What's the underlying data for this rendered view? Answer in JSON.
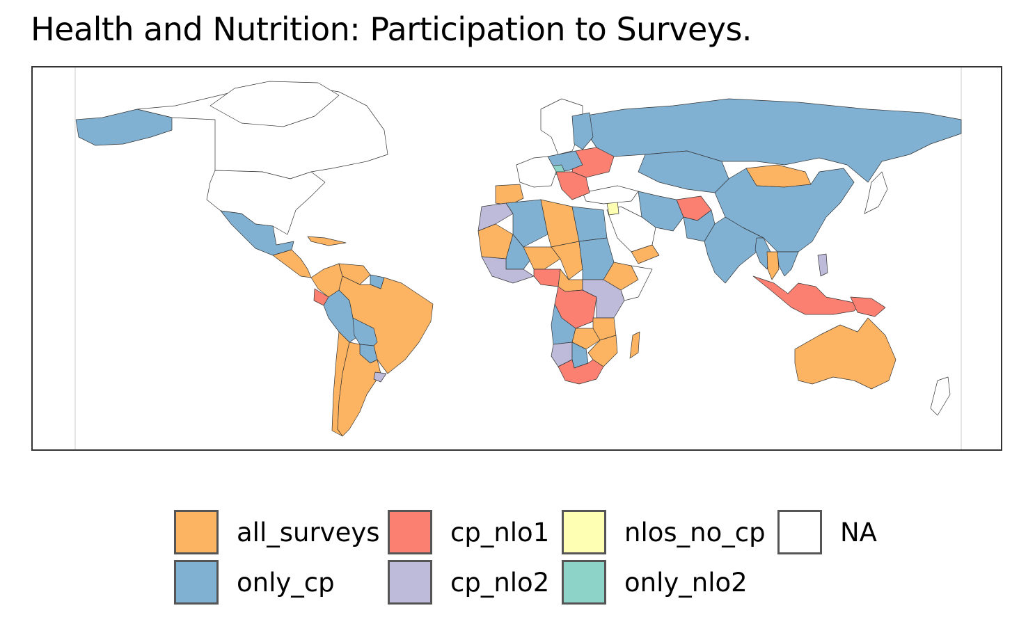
{
  "title": "Health and Nutrition: Participation to Surveys.",
  "legend": {
    "items": [
      {
        "key": "all_surveys",
        "label": "all_surveys",
        "color": "#FDB462"
      },
      {
        "key": "only_cp",
        "label": "only_cp",
        "color": "#80B1D3"
      },
      {
        "key": "cp_nlo1",
        "label": "cp_nlo1",
        "color": "#FB8072"
      },
      {
        "key": "cp_nlo2",
        "label": "cp_nlo2",
        "color": "#BEBADA"
      },
      {
        "key": "nlos_no_cp",
        "label": "nlos_no_cp",
        "color": "#FFFFB3"
      },
      {
        "key": "only_nlo2",
        "label": "only_nlo2",
        "color": "#8DD3C7"
      },
      {
        "key": "na",
        "label": "NA",
        "color": "#FFFFFF"
      }
    ]
  },
  "map": {
    "regions": [
      {
        "name": "Canada",
        "category": "na"
      },
      {
        "name": "United States",
        "category": "na"
      },
      {
        "name": "Greenland",
        "category": "na"
      },
      {
        "name": "Alaska",
        "category": "only_cp"
      },
      {
        "name": "Mexico",
        "category": "only_cp"
      },
      {
        "name": "Central America",
        "category": "all_surveys"
      },
      {
        "name": "Cuba",
        "category": "all_surveys"
      },
      {
        "name": "Colombia",
        "category": "all_surveys"
      },
      {
        "name": "Venezuela",
        "category": "all_surveys"
      },
      {
        "name": "Brazil",
        "category": "all_surveys"
      },
      {
        "name": "Ecuador",
        "category": "cp_nlo1"
      },
      {
        "name": "Peru",
        "category": "only_cp"
      },
      {
        "name": "Bolivia",
        "category": "only_cp"
      },
      {
        "name": "Paraguay",
        "category": "only_cp"
      },
      {
        "name": "Chile",
        "category": "all_surveys"
      },
      {
        "name": "Argentina",
        "category": "all_surveys"
      },
      {
        "name": "Uruguay",
        "category": "cp_nlo2"
      },
      {
        "name": "Guyana",
        "category": "only_cp"
      },
      {
        "name": "Russia",
        "category": "only_cp"
      },
      {
        "name": "Mongolia",
        "category": "all_surveys"
      },
      {
        "name": "China",
        "category": "only_cp"
      },
      {
        "name": "Kazakhstan",
        "category": "only_cp"
      },
      {
        "name": "Iran",
        "category": "only_cp"
      },
      {
        "name": "Afghanistan",
        "category": "cp_nlo1"
      },
      {
        "name": "Pakistan",
        "category": "only_cp"
      },
      {
        "name": "India",
        "category": "only_cp"
      },
      {
        "name": "Myanmar",
        "category": "only_cp"
      },
      {
        "name": "Thailand",
        "category": "all_surveys"
      },
      {
        "name": "Vietnam",
        "category": "only_cp"
      },
      {
        "name": "Indonesia",
        "category": "cp_nlo1"
      },
      {
        "name": "Papua New Guinea",
        "category": "cp_nlo1"
      },
      {
        "name": "Philippines",
        "category": "cp_nlo2"
      },
      {
        "name": "Australia",
        "category": "all_surveys"
      },
      {
        "name": "New Zealand",
        "category": "na"
      },
      {
        "name": "Japan",
        "category": "na"
      },
      {
        "name": "Saudi Arabia",
        "category": "na"
      },
      {
        "name": "Yemen",
        "category": "all_surveys"
      },
      {
        "name": "Jordan",
        "category": "nlos_no_cp"
      },
      {
        "name": "Turkey",
        "category": "na"
      },
      {
        "name": "Scandinavia",
        "category": "na"
      },
      {
        "name": "Finland",
        "category": "only_cp"
      },
      {
        "name": "Ukraine",
        "category": "cp_nlo1"
      },
      {
        "name": "Poland",
        "category": "only_cp"
      },
      {
        "name": "Czechia",
        "category": "only_nlo2"
      },
      {
        "name": "Balkans",
        "category": "cp_nlo1"
      },
      {
        "name": "Iberia",
        "category": "all_surveys"
      },
      {
        "name": "Western Europe",
        "category": "na"
      },
      {
        "name": "Morocco",
        "category": "cp_nlo2"
      },
      {
        "name": "Algeria",
        "category": "only_cp"
      },
      {
        "name": "Libya",
        "category": "all_surveys"
      },
      {
        "name": "Egypt",
        "category": "only_cp"
      },
      {
        "name": "Mauritania",
        "category": "all_surveys"
      },
      {
        "name": "Mali",
        "category": "only_cp"
      },
      {
        "name": "Niger",
        "category": "all_surveys"
      },
      {
        "name": "Chad",
        "category": "all_surveys"
      },
      {
        "name": "Sudan",
        "category": "only_cp"
      },
      {
        "name": "Ethiopia",
        "category": "all_surveys"
      },
      {
        "name": "Somalia",
        "category": "na"
      },
      {
        "name": "West Africa coast",
        "category": "cp_nlo2"
      },
      {
        "name": "Nigeria",
        "category": "cp_nlo1"
      },
      {
        "name": "Central African Republic",
        "category": "all_surveys"
      },
      {
        "name": "DR Congo",
        "category": "cp_nlo1"
      },
      {
        "name": "East Africa",
        "category": "cp_nlo2"
      },
      {
        "name": "Tanzania",
        "category": "all_surveys"
      },
      {
        "name": "Angola",
        "category": "only_cp"
      },
      {
        "name": "Zambia",
        "category": "all_surveys"
      },
      {
        "name": "Namibia",
        "category": "cp_nlo2"
      },
      {
        "name": "Botswana",
        "category": "only_cp"
      },
      {
        "name": "Mozambique",
        "category": "all_surveys"
      },
      {
        "name": "South Africa",
        "category": "cp_nlo1"
      },
      {
        "name": "Madagascar",
        "category": "all_surveys"
      }
    ]
  }
}
